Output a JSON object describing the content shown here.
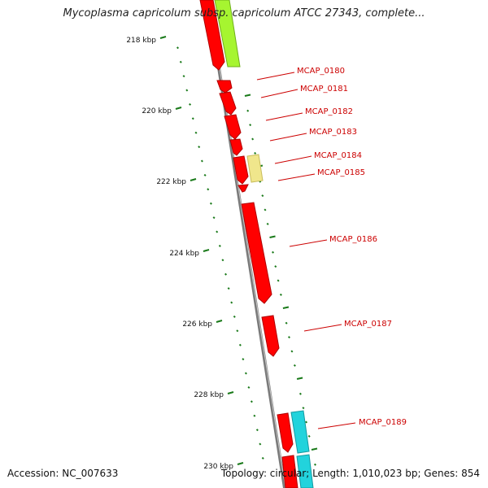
{
  "title": "Mycoplasma capricolum subsp. capricolum ATCC 27343, complete...",
  "accession": "Accession: NC_007633",
  "summary": "Topology: circular; Length: 1,010,023 bp; Genes: 854",
  "colors": {
    "backbone": "#808080",
    "gene_forward": "#ff0000",
    "gene_other_red": "#ff0000",
    "gene_lime": "#a6f530",
    "gene_khaki": "#f0e68c",
    "gene_cyan": "#22d3dc",
    "tick": "#1a7a1a",
    "label": "#cc0000"
  },
  "scale_labels": [
    "218 kbp",
    "220 kbp",
    "222 kbp",
    "224 kbp",
    "226 kbp",
    "228 kbp",
    "230 kbp"
  ],
  "genes": [
    {
      "id": "g0180",
      "label": "MCAP_0180",
      "color": "red",
      "strand": "outer"
    },
    {
      "id": "g0181",
      "label": "MCAP_0181",
      "color": "red",
      "strand": "outer"
    },
    {
      "id": "g0182",
      "label": "MCAP_0182",
      "color": "red",
      "strand": "outer"
    },
    {
      "id": "g0183",
      "label": "MCAP_0183",
      "color": "red",
      "strand": "outer"
    },
    {
      "id": "g0184",
      "label": "MCAP_0184",
      "color": "khaki",
      "strand": "outer2"
    },
    {
      "id": "g0185",
      "label": "MCAP_0185",
      "color": "red",
      "strand": "outer"
    },
    {
      "id": "g0186",
      "label": "MCAP_0186",
      "color": "red",
      "strand": "outer"
    },
    {
      "id": "g0187",
      "label": "MCAP_0187",
      "color": "red",
      "strand": "outer"
    },
    {
      "id": "g0189",
      "label": "MCAP_0189",
      "color": "red",
      "strand": "outer"
    }
  ]
}
